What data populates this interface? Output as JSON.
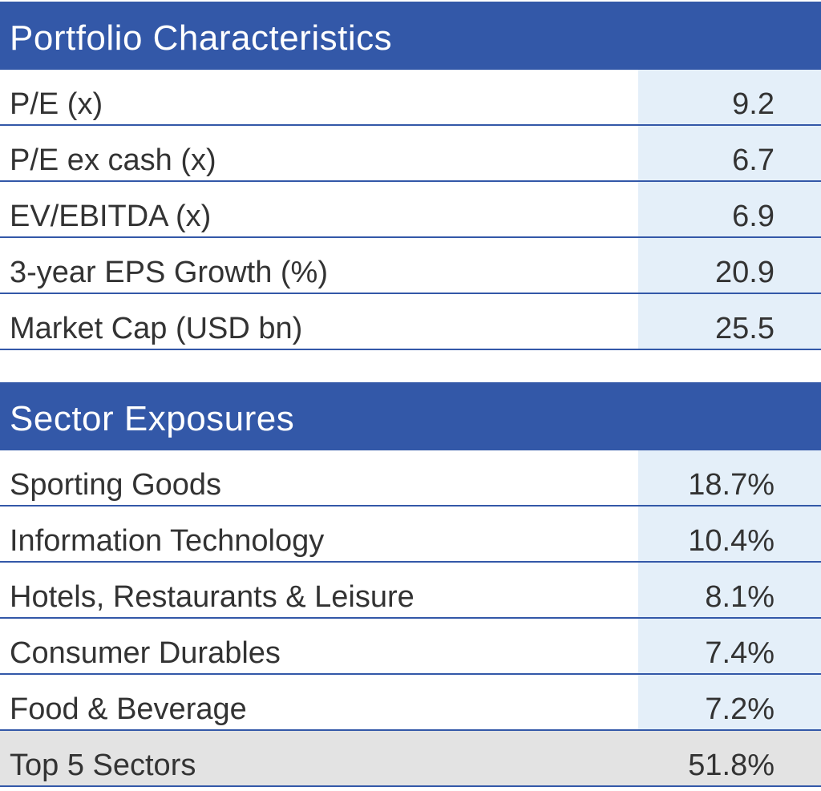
{
  "portfolio": {
    "title": "Portfolio Characteristics",
    "rows": [
      {
        "label": "P/E (x)",
        "value": "9.2"
      },
      {
        "label": "P/E ex cash (x)",
        "value": "6.7"
      },
      {
        "label": "EV/EBITDA (x)",
        "value": "6.9"
      },
      {
        "label": "3-year EPS Growth (%)",
        "value": "20.9"
      },
      {
        "label": "Market Cap (USD bn)",
        "value": "25.5"
      }
    ]
  },
  "sectors": {
    "title": "Sector Exposures",
    "rows": [
      {
        "label": "Sporting Goods",
        "value": "18.7%"
      },
      {
        "label": "Information Technology",
        "value": "10.4%"
      },
      {
        "label": "Hotels, Restaurants & Leisure",
        "value": "8.1%"
      },
      {
        "label": "Consumer Durables",
        "value": "7.4%"
      },
      {
        "label": "Food & Beverage",
        "value": "7.2%"
      }
    ],
    "total": {
      "label": "Top 5 Sectors",
      "value": "51.8%"
    }
  },
  "colors": {
    "header_bg": "#3358a8",
    "value_bg": "#e4eff9",
    "total_bg": "#e3e3e3"
  }
}
